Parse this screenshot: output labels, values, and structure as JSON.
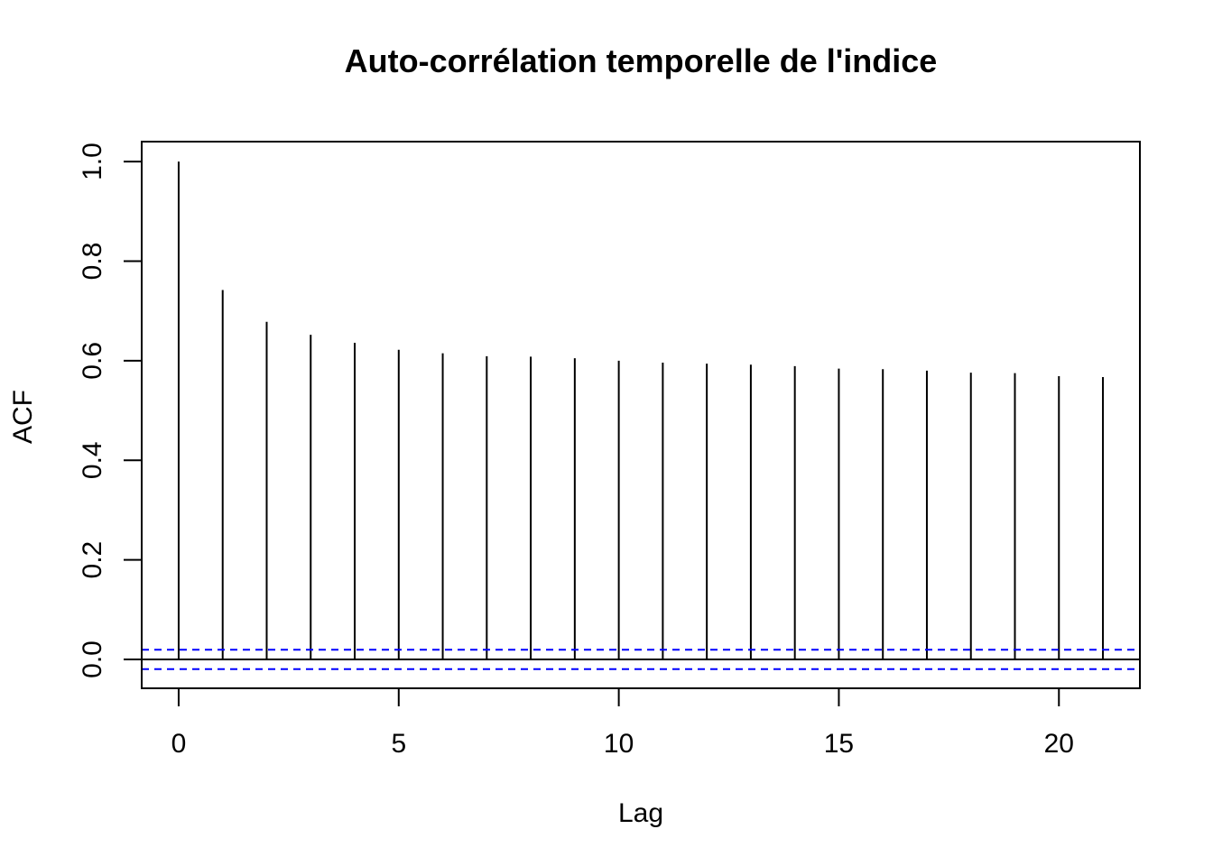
{
  "chart_data": {
    "type": "bar",
    "title": "Auto-corrélation temporelle de l'indice",
    "xlabel": "Lag",
    "ylabel": "ACF",
    "x": [
      0,
      1,
      2,
      3,
      4,
      5,
      6,
      7,
      8,
      9,
      10,
      11,
      12,
      13,
      14,
      15,
      16,
      17,
      18,
      19,
      20,
      21
    ],
    "values": [
      1.0,
      0.742,
      0.678,
      0.652,
      0.636,
      0.622,
      0.615,
      0.609,
      0.608,
      0.605,
      0.6,
      0.596,
      0.594,
      0.592,
      0.589,
      0.584,
      0.583,
      0.58,
      0.576,
      0.575,
      0.569,
      0.567
    ],
    "confidence_bound": 0.0195,
    "xlim": [
      -0.84,
      21.84
    ],
    "ylim": [
      -0.058,
      1.04
    ],
    "xticks": [
      0,
      5,
      10,
      15,
      20
    ],
    "yticks": [
      0.0,
      0.2,
      0.4,
      0.6,
      0.8,
      1.0
    ],
    "xtick_labels": [
      "0",
      "5",
      "10",
      "15",
      "20"
    ],
    "ytick_labels": [
      "0.0",
      "0.2",
      "0.4",
      "0.6",
      "0.8",
      "1.0"
    ],
    "grid": false,
    "colors": {
      "spikes": "#000000",
      "confidence_lines": "#0000ff",
      "zero_line": "#000000",
      "frame": "#000000"
    }
  }
}
